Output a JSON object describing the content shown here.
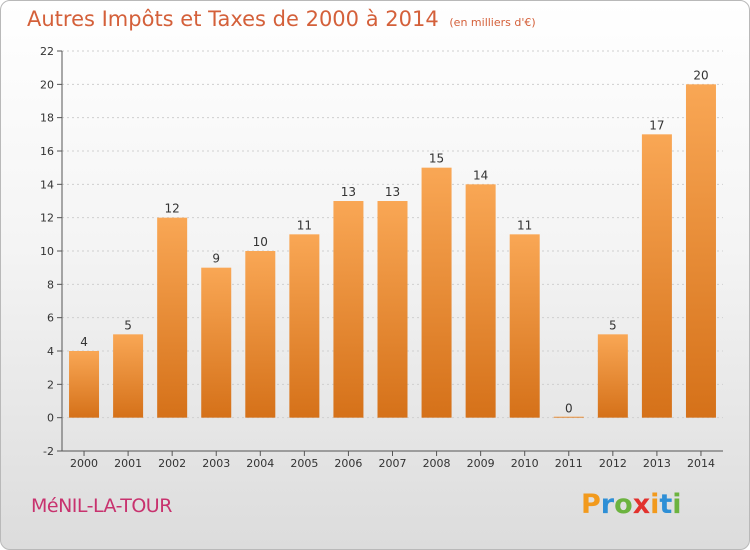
{
  "title": "Autres Impôts et Taxes de 2000 à 2014",
  "unit": "(en milliers d'€)",
  "commune": "MéNIL-LA-TOUR",
  "logo": {
    "letters": [
      "P",
      "r",
      "o",
      "x",
      "i",
      "t",
      "i"
    ],
    "colors": [
      "#f29a1d",
      "#2e8fd6",
      "#6cb33f",
      "#e2312d",
      "#f29a1d",
      "#2e8fd6",
      "#6cb33f"
    ]
  },
  "colors": {
    "bar_top": "#f9a755",
    "bar_bottom": "#d57119",
    "axis": "#555555",
    "grid": "#cfcfcf"
  },
  "chart_data": {
    "type": "bar",
    "categories": [
      "2000",
      "2001",
      "2002",
      "2003",
      "2004",
      "2005",
      "2006",
      "2007",
      "2008",
      "2009",
      "2010",
      "2011",
      "2012",
      "2013",
      "2014"
    ],
    "values": [
      4,
      5,
      12,
      9,
      10,
      11,
      13,
      13,
      15,
      14,
      11,
      0,
      5,
      17,
      20
    ],
    "ylim": [
      -2,
      22
    ],
    "yticks": [
      -2,
      0,
      2,
      4,
      6,
      8,
      10,
      12,
      14,
      16,
      18,
      20,
      22
    ],
    "data_labels": true,
    "grid": "horizontal"
  }
}
